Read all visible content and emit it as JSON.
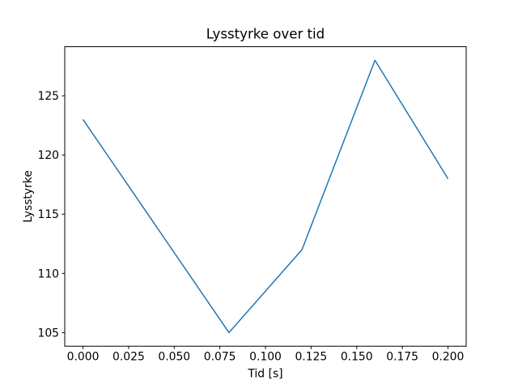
{
  "figure": {
    "background": "#ffffff"
  },
  "chart_data": {
    "type": "line",
    "title": "Lysstyrke over tid",
    "xlabel": "Tid [s]",
    "ylabel": "Lysstyrke",
    "x": [
      0.0,
      0.08,
      0.12,
      0.16,
      0.2
    ],
    "y": [
      123,
      105,
      112,
      128,
      118
    ],
    "series": [
      {
        "name": "Lysstyrke",
        "x": [
          0.0,
          0.08,
          0.12,
          0.16,
          0.2
        ],
        "values": [
          123,
          105,
          112,
          128,
          118
        ]
      }
    ],
    "xlim": [
      -0.01,
      0.21
    ],
    "ylim": [
      103.85,
      129.15
    ],
    "xticks": {
      "values": [
        0.0,
        0.025,
        0.05,
        0.075,
        0.1,
        0.125,
        0.15,
        0.175,
        0.2
      ],
      "labels": [
        "0.000",
        "0.025",
        "0.050",
        "0.075",
        "0.100",
        "0.125",
        "0.150",
        "0.175",
        "0.200"
      ]
    },
    "yticks": {
      "values": [
        105,
        110,
        115,
        120,
        125
      ],
      "labels": [
        "105",
        "110",
        "115",
        "120",
        "125"
      ]
    },
    "line_color": "#1f77b4",
    "line_width": 1.5,
    "spine_color": "#000000",
    "grid": false,
    "legend_position": "none"
  }
}
